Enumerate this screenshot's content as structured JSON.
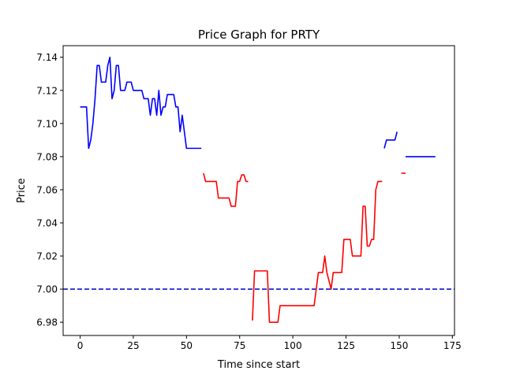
{
  "chart_data": {
    "type": "line",
    "title": "Price Graph for PRTY",
    "xlabel": "Time since start",
    "ylabel": "Price",
    "xlim": [
      -8,
      176
    ],
    "ylim": [
      6.972,
      7.147
    ],
    "xticks": [
      0,
      25,
      50,
      75,
      100,
      125,
      150,
      175
    ],
    "xtick_labels": [
      "0",
      "25",
      "50",
      "75",
      "100",
      "125",
      "150",
      "175"
    ],
    "yticks": [
      6.98,
      7.0,
      7.02,
      7.04,
      7.06,
      7.08,
      7.1,
      7.12,
      7.14
    ],
    "ytick_labels": [
      "6.98",
      "7.00",
      "7.02",
      "7.04",
      "7.06",
      "7.08",
      "7.10",
      "7.12",
      "7.14"
    ],
    "grid": false,
    "reference_line": {
      "y": 7.0,
      "color": "#0000cc",
      "style": "dashed"
    },
    "series": [
      {
        "color": "#0000ff",
        "segments": [
          [
            [
              0,
              7.11
            ],
            [
              3,
              7.11
            ],
            [
              4,
              7.085
            ],
            [
              5,
              7.09
            ],
            [
              6,
              7.1
            ],
            [
              7,
              7.115
            ],
            [
              8,
              7.135
            ],
            [
              9,
              7.135
            ],
            [
              10,
              7.125
            ],
            [
              12,
              7.125
            ],
            [
              13,
              7.135
            ],
            [
              14,
              7.14
            ],
            [
              15,
              7.115
            ],
            [
              16,
              7.12
            ],
            [
              17,
              7.135
            ],
            [
              18,
              7.135
            ],
            [
              19,
              7.12
            ],
            [
              21,
              7.12
            ],
            [
              22,
              7.125
            ],
            [
              24,
              7.125
            ],
            [
              25,
              7.12
            ],
            [
              29,
              7.12
            ],
            [
              30,
              7.115
            ],
            [
              32,
              7.115
            ],
            [
              33,
              7.105
            ],
            [
              34,
              7.115
            ],
            [
              35,
              7.115
            ],
            [
              36,
              7.105
            ],
            [
              37,
              7.12
            ],
            [
              38,
              7.105
            ],
            [
              39,
              7.11
            ],
            [
              40,
              7.11
            ],
            [
              41,
              7.1175
            ],
            [
              44,
              7.1175
            ],
            [
              45,
              7.11
            ],
            [
              46,
              7.11
            ],
            [
              47,
              7.095
            ],
            [
              48,
              7.105
            ],
            [
              49,
              7.095
            ],
            [
              50,
              7.085
            ],
            [
              57,
              7.085
            ]
          ],
          [
            [
              143,
              7.085
            ],
            [
              144,
              7.09
            ],
            [
              148,
              7.09
            ],
            [
              149,
              7.095
            ]
          ],
          [
            [
              153,
              7.08
            ],
            [
              167,
              7.08
            ]
          ]
        ]
      },
      {
        "color": "#ff0000",
        "segments": [
          [
            [
              58,
              7.07
            ],
            [
              59,
              7.065
            ],
            [
              64,
              7.065
            ],
            [
              65,
              7.055
            ],
            [
              70,
              7.055
            ],
            [
              71,
              7.05
            ],
            [
              73,
              7.05
            ],
            [
              74,
              7.065
            ],
            [
              75,
              7.065
            ],
            [
              76,
              7.069
            ],
            [
              77,
              7.069
            ],
            [
              78,
              7.065
            ],
            [
              79,
              7.065
            ]
          ],
          [
            [
              81,
              6.981
            ],
            [
              82,
              7.011
            ],
            [
              88,
              7.011
            ],
            [
              89,
              6.98
            ],
            [
              93,
              6.98
            ],
            [
              94,
              6.99
            ],
            [
              100,
              6.99
            ],
            [
              101,
              6.99
            ],
            [
              110,
              6.99
            ],
            [
              111,
              7.0
            ],
            [
              112,
              7.01
            ],
            [
              114,
              7.01
            ],
            [
              115,
              7.02
            ],
            [
              116,
              7.01
            ],
            [
              118,
              7.0
            ],
            [
              119,
              7.01
            ],
            [
              123,
              7.01
            ],
            [
              124,
              7.03
            ],
            [
              127,
              7.03
            ],
            [
              128,
              7.02
            ],
            [
              132,
              7.02
            ],
            [
              133,
              7.05
            ],
            [
              134,
              7.05
            ],
            [
              135,
              7.026
            ],
            [
              136,
              7.026
            ],
            [
              137,
              7.03
            ],
            [
              138,
              7.03
            ],
            [
              139,
              7.06
            ],
            [
              140,
              7.065
            ],
            [
              142,
              7.065
            ]
          ],
          [
            [
              151,
              7.07
            ],
            [
              153,
              7.07
            ]
          ]
        ]
      }
    ]
  }
}
